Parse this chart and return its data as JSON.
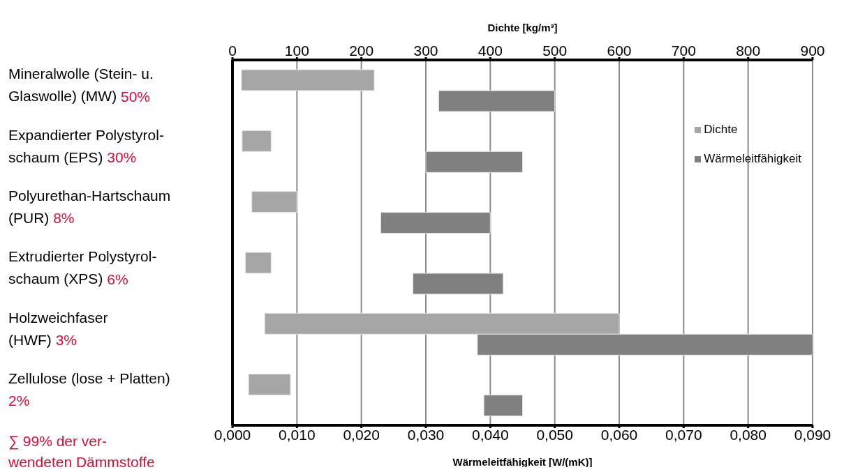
{
  "chart_data": {
    "type": "bar",
    "orientation": "horizontal",
    "categories": [
      "Mineralwolle (Stein- u.\nGlaswolle) (MW) 50%",
      "Expandierter Polystyrol-\nschaum (EPS) 30%",
      "Polyurethan-Hartschaum\n(PUR) 8%",
      "Extrudierter Polystyrol-\nschaum (XPS) 6%",
      "Holzweichfaser\n(HWF) 3%",
      "Zellulose (lose + Platten)\n2%"
    ],
    "series": [
      {
        "name": "Dichte",
        "color": "#a6a6a6",
        "axis": "x2",
        "base": [
          14,
          15,
          30,
          20,
          50,
          25
        ],
        "values": [
          206,
          45,
          70,
          40,
          550,
          65
        ]
      },
      {
        "name": "Wärmeleitfähigkeit",
        "color": "#808080",
        "base": [
          0.032,
          0.03,
          0.023,
          0.028,
          0.038,
          0.039
        ],
        "values": [
          0.018,
          0.015,
          0.017,
          0.014,
          0.052,
          0.006
        ]
      }
    ],
    "xlabel": "Wärmeleitfähigkeit [W/(mK)]",
    "x2label": "Dichte [kg/m³]",
    "xlim": [
      0,
      0.09
    ],
    "xticks": [
      {
        "value": 0,
        "label": "0,000"
      },
      {
        "value": 0.01,
        "label": "0,010"
      },
      {
        "value": 0.02,
        "label": "0,020"
      },
      {
        "value": 0.03,
        "label": "0,030"
      },
      {
        "value": 0.04,
        "label": "0,040"
      },
      {
        "value": 0.05,
        "label": "0,050"
      },
      {
        "value": 0.06,
        "label": "0,060"
      },
      {
        "value": 0.07,
        "label": "0,070"
      },
      {
        "value": 0.08,
        "label": "0,080"
      },
      {
        "value": 0.09,
        "label": "0,090"
      }
    ],
    "x2lim": [
      0,
      900
    ],
    "x2ticks": [
      0,
      100,
      200,
      300,
      400,
      500,
      600,
      700,
      800,
      900
    ],
    "grid": "x",
    "legend": "top right",
    "annotations": [
      "∑ 99% der ver-\nwendeten Dämmstoffe"
    ]
  }
}
